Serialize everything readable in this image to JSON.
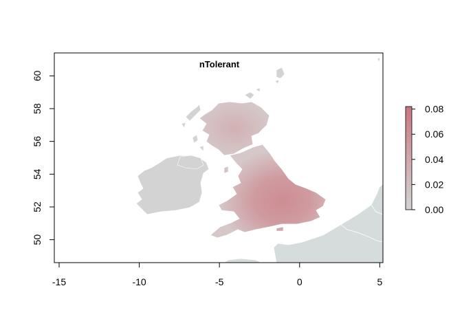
{
  "map": {
    "title": "nTolerant",
    "x_ticks": [
      "-15",
      "-10",
      "-5",
      "0",
      "5"
    ],
    "y_ticks": [
      "50",
      "52",
      "54",
      "56",
      "58",
      "60"
    ],
    "xlim": [
      -15.3,
      5.2
    ],
    "ylim": [
      48.6,
      61.4
    ],
    "colors": {
      "land_outside": "#d6dcdc",
      "ireland": "#d3d3d3",
      "low": "#d3d3d3",
      "high": "#c8787f",
      "axis": "#000000"
    }
  },
  "legend": {
    "labels": [
      "0.00",
      "0.02",
      "0.04",
      "0.06",
      "0.08"
    ],
    "values": [
      0.0,
      0.02,
      0.04,
      0.06,
      0.08
    ],
    "min": 0.0,
    "max": 0.082
  }
}
